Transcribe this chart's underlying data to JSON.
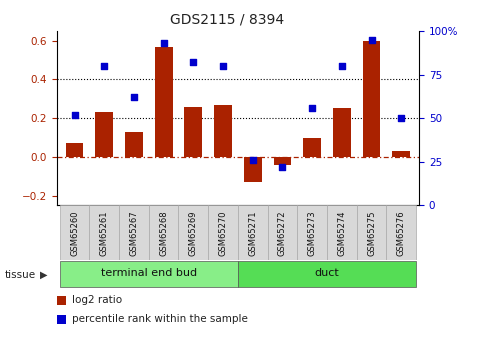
{
  "title": "GDS2115 / 8394",
  "categories": [
    "GSM65260",
    "GSM65261",
    "GSM65267",
    "GSM65268",
    "GSM65269",
    "GSM65270",
    "GSM65271",
    "GSM65272",
    "GSM65273",
    "GSM65274",
    "GSM65275",
    "GSM65276"
  ],
  "log2_ratio": [
    0.07,
    0.23,
    0.13,
    0.57,
    0.26,
    0.27,
    -0.13,
    -0.04,
    0.1,
    0.25,
    0.6,
    0.03
  ],
  "percentile_rank": [
    52,
    80,
    62,
    93,
    82,
    80,
    26,
    22,
    56,
    80,
    95,
    50
  ],
  "bar_color": "#aa2200",
  "dot_color": "#0000cc",
  "ylim_left": [
    -0.25,
    0.65
  ],
  "ylim_right": [
    0,
    100
  ],
  "yticks_left": [
    -0.2,
    0.0,
    0.2,
    0.4,
    0.6
  ],
  "yticks_right": [
    0,
    25,
    50,
    75,
    100
  ],
  "ytick_labels_right": [
    "0",
    "25",
    "50",
    "75",
    "100%"
  ],
  "hline_zero_color": "#aa2200",
  "hline_dotted_color": "#000000",
  "groups": [
    {
      "label": "terminal end bud",
      "start": 0,
      "end": 5,
      "color": "#88ee88"
    },
    {
      "label": "duct",
      "start": 6,
      "end": 11,
      "color": "#55dd55"
    }
  ],
  "tissue_label": "tissue",
  "legend_bar_label": "log2 ratio",
  "legend_dot_label": "percentile rank within the sample",
  "background_color": "#ffffff"
}
